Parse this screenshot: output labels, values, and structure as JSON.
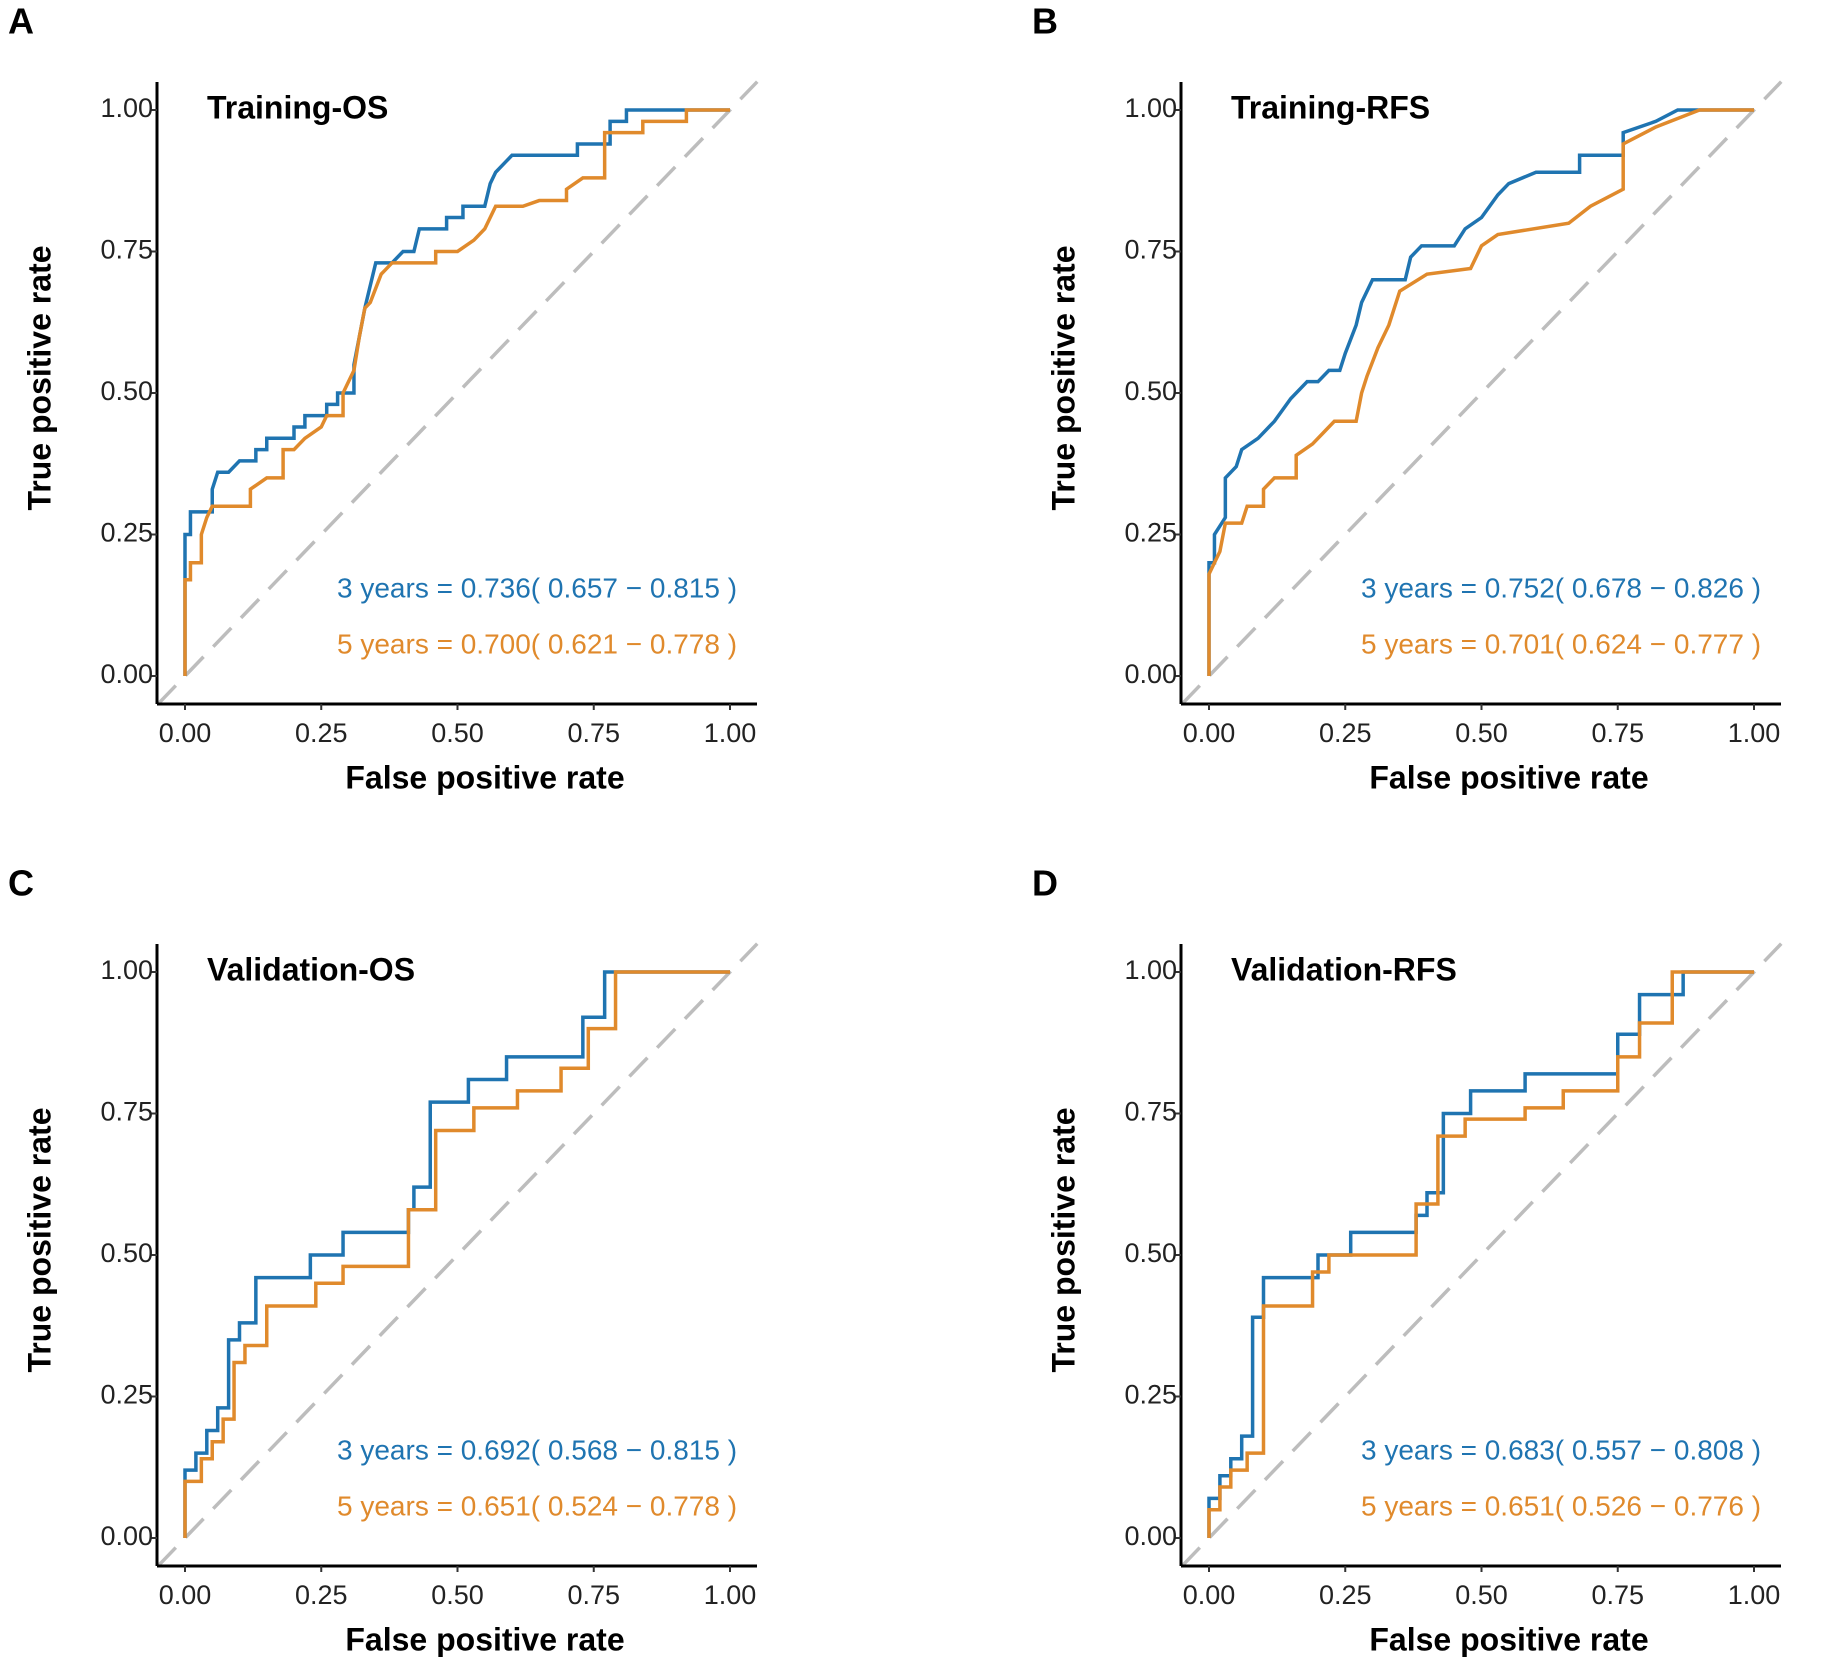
{
  "chart_data": [
    {
      "type": "line",
      "label": "A",
      "title": "Training-OS",
      "xlabel": "False positive rate",
      "ylabel": "True positive rate",
      "xlim": [
        0,
        1
      ],
      "ylim": [
        0,
        1
      ],
      "xticks": [
        {
          "value": 0,
          "label": "0.00"
        },
        {
          "value": 0.25,
          "label": "0.25"
        },
        {
          "value": 0.5,
          "label": "0.50"
        },
        {
          "value": 0.75,
          "label": "0.75"
        },
        {
          "value": 1,
          "label": "1.00"
        }
      ],
      "yticks": [
        {
          "value": 0,
          "label": "0.00"
        },
        {
          "value": 0.25,
          "label": "0.25"
        },
        {
          "value": 0.5,
          "label": "0.50"
        },
        {
          "value": 0.75,
          "label": "0.75"
        },
        {
          "value": 1,
          "label": "1.00"
        }
      ],
      "series": [
        {
          "name": "3 years = 0.736( 0.657 − 0.815 )",
          "color": "#1f74b1",
          "x": [
            0,
            0,
            0.01,
            0.01,
            0.05,
            0.05,
            0.06,
            0.08,
            0.1,
            0.13,
            0.13,
            0.15,
            0.15,
            0.2,
            0.2,
            0.22,
            0.22,
            0.26,
            0.26,
            0.28,
            0.28,
            0.31,
            0.31,
            0.32,
            0.33,
            0.34,
            0.35,
            0.38,
            0.4,
            0.42,
            0.43,
            0.48,
            0.48,
            0.51,
            0.51,
            0.55,
            0.56,
            0.57,
            0.6,
            0.72,
            0.72,
            0.78,
            0.78,
            0.81,
            0.81,
            1
          ],
          "values": [
            0,
            0.25,
            0.25,
            0.29,
            0.29,
            0.33,
            0.36,
            0.36,
            0.38,
            0.38,
            0.4,
            0.4,
            0.42,
            0.42,
            0.44,
            0.44,
            0.46,
            0.46,
            0.48,
            0.48,
            0.5,
            0.5,
            0.55,
            0.6,
            0.65,
            0.69,
            0.73,
            0.73,
            0.75,
            0.75,
            0.79,
            0.79,
            0.81,
            0.81,
            0.83,
            0.83,
            0.87,
            0.89,
            0.92,
            0.92,
            0.94,
            0.94,
            0.98,
            0.98,
            1,
            1
          ]
        },
        {
          "name": "5 years = 0.700( 0.621 − 0.778 )",
          "color": "#e08a2c",
          "x": [
            0,
            0,
            0.01,
            0.01,
            0.03,
            0.03,
            0.04,
            0.05,
            0.12,
            0.12,
            0.15,
            0.18,
            0.18,
            0.2,
            0.22,
            0.25,
            0.26,
            0.29,
            0.29,
            0.31,
            0.32,
            0.33,
            0.34,
            0.36,
            0.38,
            0.46,
            0.46,
            0.5,
            0.53,
            0.55,
            0.57,
            0.62,
            0.65,
            0.7,
            0.7,
            0.73,
            0.77,
            0.77,
            0.84,
            0.84,
            0.92,
            0.92,
            1
          ],
          "values": [
            0,
            0.17,
            0.17,
            0.2,
            0.2,
            0.25,
            0.28,
            0.3,
            0.3,
            0.33,
            0.35,
            0.35,
            0.4,
            0.4,
            0.42,
            0.44,
            0.46,
            0.46,
            0.5,
            0.54,
            0.6,
            0.65,
            0.66,
            0.71,
            0.73,
            0.73,
            0.75,
            0.75,
            0.77,
            0.79,
            0.83,
            0.83,
            0.84,
            0.84,
            0.86,
            0.88,
            0.88,
            0.96,
            0.96,
            0.98,
            0.98,
            1,
            1
          ]
        }
      ]
    },
    {
      "type": "line",
      "label": "B",
      "title": "Training-RFS",
      "xlabel": "False positive rate",
      "ylabel": "True positive rate",
      "xlim": [
        0,
        1
      ],
      "ylim": [
        0,
        1
      ],
      "xticks": [
        {
          "value": 0,
          "label": "0.00"
        },
        {
          "value": 0.25,
          "label": "0.25"
        },
        {
          "value": 0.5,
          "label": "0.50"
        },
        {
          "value": 0.75,
          "label": "0.75"
        },
        {
          "value": 1,
          "label": "1.00"
        }
      ],
      "yticks": [
        {
          "value": 0,
          "label": "0.00"
        },
        {
          "value": 0.25,
          "label": "0.25"
        },
        {
          "value": 0.5,
          "label": "0.50"
        },
        {
          "value": 0.75,
          "label": "0.75"
        },
        {
          "value": 1,
          "label": "1.00"
        }
      ],
      "series": [
        {
          "name": "3 years = 0.752( 0.678 − 0.826 )",
          "color": "#1f74b1",
          "x": [
            0,
            0,
            0.01,
            0.01,
            0.03,
            0.03,
            0.05,
            0.06,
            0.09,
            0.12,
            0.15,
            0.18,
            0.2,
            0.22,
            0.24,
            0.25,
            0.27,
            0.28,
            0.3,
            0.36,
            0.37,
            0.39,
            0.45,
            0.47,
            0.5,
            0.53,
            0.55,
            0.6,
            0.68,
            0.68,
            0.76,
            0.76,
            0.82,
            0.86,
            1
          ],
          "values": [
            0,
            0.2,
            0.2,
            0.25,
            0.28,
            0.35,
            0.37,
            0.4,
            0.42,
            0.45,
            0.49,
            0.52,
            0.52,
            0.54,
            0.54,
            0.57,
            0.62,
            0.66,
            0.7,
            0.7,
            0.74,
            0.76,
            0.76,
            0.79,
            0.81,
            0.85,
            0.87,
            0.89,
            0.89,
            0.92,
            0.92,
            0.96,
            0.98,
            1,
            1
          ]
        },
        {
          "name": "5 years = 0.701( 0.624 − 0.777 )",
          "color": "#e08a2c",
          "x": [
            0,
            0,
            0.01,
            0.02,
            0.03,
            0.06,
            0.07,
            0.1,
            0.1,
            0.12,
            0.16,
            0.16,
            0.19,
            0.21,
            0.23,
            0.27,
            0.28,
            0.29,
            0.31,
            0.33,
            0.35,
            0.4,
            0.48,
            0.5,
            0.53,
            0.66,
            0.7,
            0.76,
            0.76,
            0.82,
            0.9,
            1
          ],
          "values": [
            0,
            0.18,
            0.2,
            0.22,
            0.27,
            0.27,
            0.3,
            0.3,
            0.33,
            0.35,
            0.35,
            0.39,
            0.41,
            0.43,
            0.45,
            0.45,
            0.5,
            0.53,
            0.58,
            0.62,
            0.68,
            0.71,
            0.72,
            0.76,
            0.78,
            0.8,
            0.83,
            0.86,
            0.94,
            0.97,
            1,
            1
          ]
        }
      ]
    },
    {
      "type": "line",
      "label": "C",
      "title": "Validation-OS",
      "xlabel": "False positive rate",
      "ylabel": "True positive rate",
      "xlim": [
        0,
        1
      ],
      "ylim": [
        0,
        1
      ],
      "xticks": [
        {
          "value": 0,
          "label": "0.00"
        },
        {
          "value": 0.25,
          "label": "0.25"
        },
        {
          "value": 0.5,
          "label": "0.50"
        },
        {
          "value": 0.75,
          "label": "0.75"
        },
        {
          "value": 1,
          "label": "1.00"
        }
      ],
      "yticks": [
        {
          "value": 0,
          "label": "0.00"
        },
        {
          "value": 0.25,
          "label": "0.25"
        },
        {
          "value": 0.5,
          "label": "0.50"
        },
        {
          "value": 0.75,
          "label": "0.75"
        },
        {
          "value": 1,
          "label": "1.00"
        }
      ],
      "series": [
        {
          "name": "3 years = 0.692( 0.568 − 0.815 )",
          "color": "#1f74b1",
          "x": [
            0,
            0,
            0.02,
            0.02,
            0.04,
            0.04,
            0.06,
            0.06,
            0.08,
            0.08,
            0.1,
            0.1,
            0.13,
            0.13,
            0.23,
            0.23,
            0.29,
            0.29,
            0.41,
            0.41,
            0.42,
            0.42,
            0.45,
            0.45,
            0.52,
            0.52,
            0.59,
            0.59,
            0.73,
            0.73,
            0.77,
            0.77,
            1
          ],
          "values": [
            0,
            0.12,
            0.12,
            0.15,
            0.15,
            0.19,
            0.19,
            0.23,
            0.23,
            0.35,
            0.35,
            0.38,
            0.38,
            0.46,
            0.46,
            0.5,
            0.5,
            0.54,
            0.54,
            0.58,
            0.58,
            0.62,
            0.62,
            0.77,
            0.77,
            0.81,
            0.81,
            0.85,
            0.85,
            0.92,
            0.92,
            1,
            1
          ]
        },
        {
          "name": "5 years = 0.651( 0.524 − 0.778 )",
          "color": "#e08a2c",
          "x": [
            0,
            0,
            0.03,
            0.03,
            0.05,
            0.05,
            0.07,
            0.07,
            0.09,
            0.09,
            0.11,
            0.11,
            0.15,
            0.15,
            0.24,
            0.24,
            0.29,
            0.29,
            0.41,
            0.41,
            0.46,
            0.46,
            0.53,
            0.53,
            0.61,
            0.61,
            0.69,
            0.69,
            0.74,
            0.74,
            0.79,
            0.79,
            1
          ],
          "values": [
            0,
            0.1,
            0.1,
            0.14,
            0.14,
            0.17,
            0.17,
            0.21,
            0.21,
            0.31,
            0.31,
            0.34,
            0.34,
            0.41,
            0.41,
            0.45,
            0.45,
            0.48,
            0.48,
            0.58,
            0.58,
            0.72,
            0.72,
            0.76,
            0.76,
            0.79,
            0.79,
            0.83,
            0.83,
            0.9,
            0.9,
            1,
            1
          ]
        }
      ]
    },
    {
      "type": "line",
      "label": "D",
      "title": "Validation-RFS",
      "xlabel": "False positive rate",
      "ylabel": "True positive rate",
      "xlim": [
        0,
        1
      ],
      "ylim": [
        0,
        1
      ],
      "xticks": [
        {
          "value": 0,
          "label": "0.00"
        },
        {
          "value": 0.25,
          "label": "0.25"
        },
        {
          "value": 0.5,
          "label": "0.50"
        },
        {
          "value": 0.75,
          "label": "0.75"
        },
        {
          "value": 1,
          "label": "1.00"
        }
      ],
      "yticks": [
        {
          "value": 0,
          "label": "0.00"
        },
        {
          "value": 0.25,
          "label": "0.25"
        },
        {
          "value": 0.5,
          "label": "0.50"
        },
        {
          "value": 0.75,
          "label": "0.75"
        },
        {
          "value": 1,
          "label": "1.00"
        }
      ],
      "series": [
        {
          "name": "3 years = 0.683( 0.557 − 0.808 )",
          "color": "#1f74b1",
          "x": [
            0,
            0,
            0.02,
            0.02,
            0.04,
            0.04,
            0.06,
            0.06,
            0.08,
            0.08,
            0.1,
            0.1,
            0.2,
            0.2,
            0.26,
            0.26,
            0.38,
            0.38,
            0.4,
            0.4,
            0.43,
            0.43,
            0.48,
            0.48,
            0.58,
            0.58,
            0.75,
            0.75,
            0.79,
            0.79,
            0.87,
            0.87,
            1
          ],
          "values": [
            0,
            0.07,
            0.07,
            0.11,
            0.11,
            0.14,
            0.14,
            0.18,
            0.18,
            0.39,
            0.39,
            0.46,
            0.46,
            0.5,
            0.5,
            0.54,
            0.54,
            0.57,
            0.57,
            0.61,
            0.61,
            0.75,
            0.75,
            0.79,
            0.79,
            0.82,
            0.82,
            0.89,
            0.89,
            0.96,
            0.96,
            1,
            1
          ]
        },
        {
          "name": "5 years = 0.651( 0.526 − 0.776 )",
          "color": "#e08a2c",
          "x": [
            0,
            0,
            0.02,
            0.02,
            0.04,
            0.04,
            0.07,
            0.07,
            0.1,
            0.1,
            0.19,
            0.19,
            0.22,
            0.22,
            0.38,
            0.38,
            0.42,
            0.42,
            0.47,
            0.47,
            0.58,
            0.58,
            0.65,
            0.65,
            0.75,
            0.75,
            0.79,
            0.79,
            0.85,
            0.85,
            1
          ],
          "values": [
            0,
            0.05,
            0.05,
            0.09,
            0.09,
            0.12,
            0.12,
            0.15,
            0.15,
            0.41,
            0.41,
            0.47,
            0.47,
            0.5,
            0.5,
            0.59,
            0.59,
            0.71,
            0.71,
            0.74,
            0.74,
            0.76,
            0.76,
            0.79,
            0.79,
            0.85,
            0.85,
            0.91,
            0.91,
            1,
            1
          ]
        }
      ]
    }
  ]
}
